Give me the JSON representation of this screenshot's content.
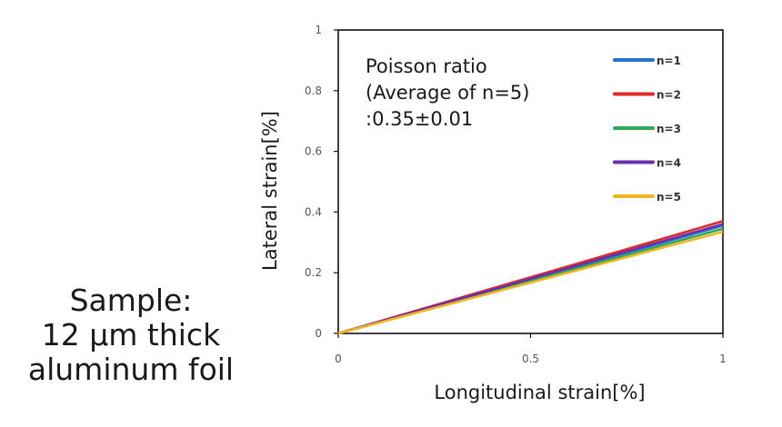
{
  "sample_caption": {
    "line1": "Sample:",
    "line2": "12 μm thick",
    "line3": "aluminum foil"
  },
  "chart_data": {
    "type": "line",
    "xlabel": "Longitudinal strain[%]",
    "ylabel": "Lateral strain[%]",
    "xlim": [
      0,
      1
    ],
    "ylim": [
      0,
      1
    ],
    "x_ticks": [
      "0",
      "0.5",
      "1"
    ],
    "y_ticks": [
      "0",
      "0.2",
      "0.4",
      "0.6",
      "0.8",
      "1"
    ],
    "grid": false,
    "legend_position": "top-right",
    "annotation": [
      "Poisson ratio",
      "(Average of n=5)",
      ":0.35±0.01"
    ],
    "series": [
      {
        "name": "n=1",
        "color": "#2a6fd6",
        "x": [
          0,
          1
        ],
        "y": [
          0,
          0.355
        ]
      },
      {
        "name": "n=2",
        "color": "#e02a2a",
        "x": [
          0,
          1
        ],
        "y": [
          0,
          0.37
        ]
      },
      {
        "name": "n=3",
        "color": "#2eaa5a",
        "x": [
          0,
          1
        ],
        "y": [
          0,
          0.345
        ]
      },
      {
        "name": "n=4",
        "color": "#6a2fb0",
        "x": [
          0,
          1
        ],
        "y": [
          0,
          0.36
        ]
      },
      {
        "name": "n=5",
        "color": "#f2b51c",
        "x": [
          0,
          1
        ],
        "y": [
          0,
          0.335
        ]
      }
    ]
  }
}
